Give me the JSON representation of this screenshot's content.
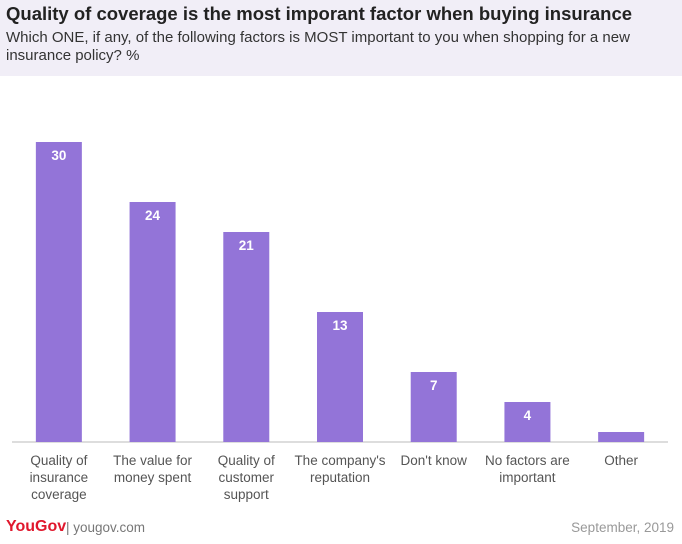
{
  "chart_data": {
    "type": "bar",
    "title": "Quality of coverage is the most imporant factor when buying insurance",
    "subtitle": "Which ONE, if any, of the following factors is MOST important to you when shopping for a new insurance policy? %",
    "categories": [
      "Quality of insurance coverage",
      "The value for money spent",
      "Quality of customer support",
      "The company's reputation",
      "Don't know",
      "No factors are important",
      "Other"
    ],
    "values": [
      30,
      24,
      21,
      13,
      7,
      4,
      1
    ],
    "color": "#9374d8",
    "ylim": [
      0,
      30
    ],
    "brand": "YouGov",
    "site": "yougov.com",
    "date": "September, 2019"
  }
}
